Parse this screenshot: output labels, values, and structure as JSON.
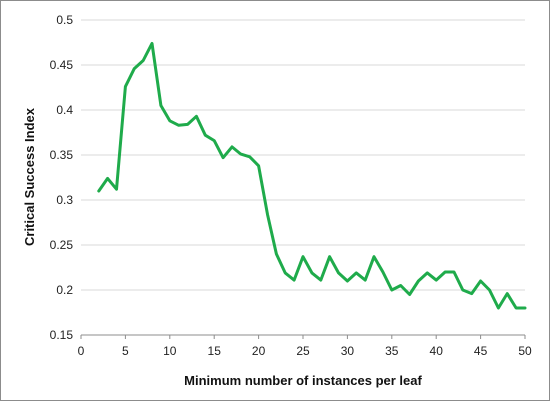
{
  "chart_data": {
    "type": "line",
    "title": "",
    "xlabel": "Minimum number of instances per leaf",
    "ylabel": "Critical Success Index",
    "xlim": [
      0,
      50
    ],
    "ylim": [
      0.15,
      0.5
    ],
    "xticks": [
      "0",
      "5",
      "10",
      "15",
      "20",
      "25",
      "30",
      "35",
      "40",
      "45",
      "50"
    ],
    "yticks": [
      "0.15",
      "0.2",
      "0.25",
      "0.3",
      "0.35",
      "0.4",
      "0.45",
      "0.5"
    ],
    "grid": "horizontal",
    "legend": "none",
    "series": [
      {
        "color": "#1fab4b",
        "x": [
          2,
          3,
          4,
          5,
          6,
          7,
          8,
          9,
          10,
          11,
          12,
          13,
          14,
          15,
          16,
          17,
          18,
          19,
          20,
          21,
          22,
          23,
          24,
          25,
          26,
          27,
          28,
          29,
          30,
          31,
          32,
          33,
          34,
          35,
          36,
          37,
          38,
          39,
          40,
          41,
          42,
          43,
          44,
          45,
          46,
          47,
          48,
          49,
          50
        ],
        "y": [
          0.31,
          0.324,
          0.312,
          0.426,
          0.446,
          0.455,
          0.474,
          0.405,
          0.388,
          0.383,
          0.384,
          0.393,
          0.372,
          0.366,
          0.347,
          0.359,
          0.351,
          0.348,
          0.338,
          0.284,
          0.24,
          0.219,
          0.211,
          0.237,
          0.219,
          0.211,
          0.237,
          0.219,
          0.21,
          0.219,
          0.211,
          0.237,
          0.22,
          0.2,
          0.205,
          0.195,
          0.21,
          0.219,
          0.211,
          0.22,
          0.22,
          0.2,
          0.196,
          0.21,
          0.2,
          0.18,
          0.196,
          0.18,
          0.18
        ]
      }
    ]
  }
}
